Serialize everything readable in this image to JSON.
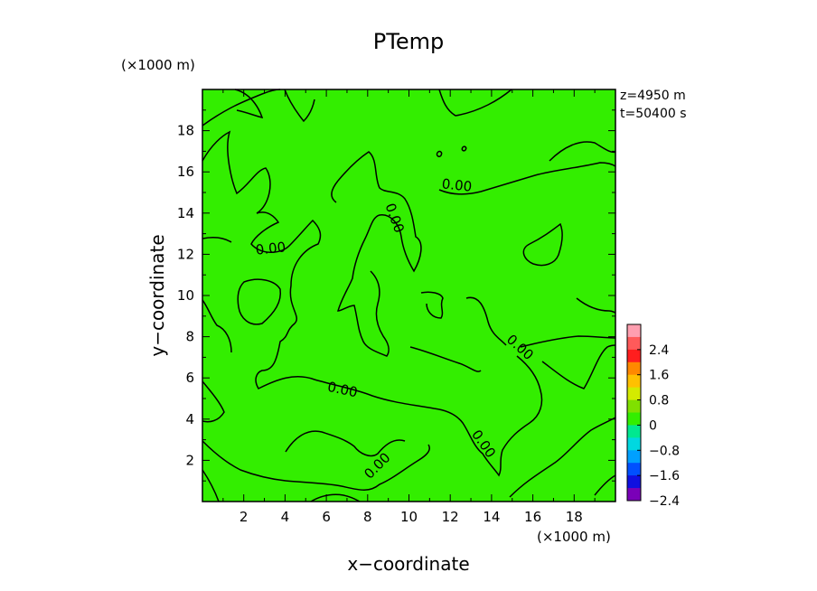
{
  "chart_data": {
    "type": "contour",
    "title": "PTemp",
    "xlabel": "x−coordinate",
    "ylabel": "y−coordinate",
    "x_unit": "(×1000 m)",
    "y_unit": "(×1000 m)",
    "xlim": [
      0,
      20
    ],
    "ylim": [
      0,
      20
    ],
    "x_ticks": [
      2,
      4,
      6,
      8,
      10,
      12,
      14,
      16,
      18
    ],
    "y_ticks": [
      2,
      4,
      6,
      8,
      10,
      12,
      14,
      16,
      18
    ],
    "info": [
      "z=4950  m",
      "t=50400  s"
    ],
    "contour_label": "0.00",
    "field_color": "#33ee00",
    "colorbar": {
      "labels": [
        "2.4",
        "1.6",
        "0.8",
        "0",
        "−0.8",
        "−1.6",
        "−2.4"
      ],
      "colors": [
        "#ff9fb0",
        "#ff5a5a",
        "#ff1e1e",
        "#ff8800",
        "#ffc000",
        "#d4ea00",
        "#80e000",
        "#33ee00",
        "#00e890",
        "#00d8e0",
        "#00a0ff",
        "#0050ff",
        "#1010e0",
        "#7a00b8"
      ]
    }
  }
}
